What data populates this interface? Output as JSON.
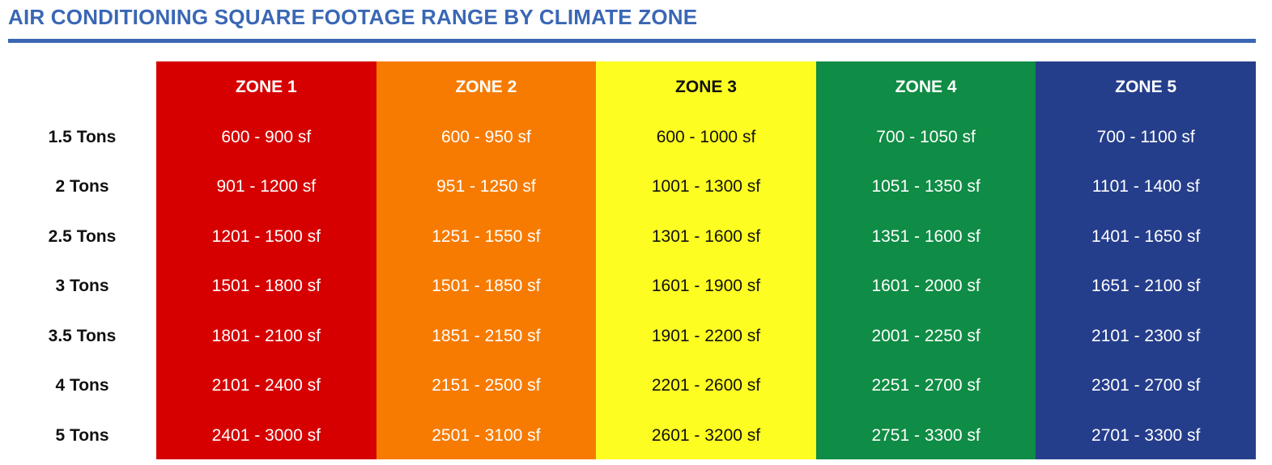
{
  "title": "AIR CONDITIONING SQUARE FOOTAGE RANGE BY CLIMATE ZONE",
  "colors": {
    "title": "#3a67b5",
    "zones": [
      "#d60000",
      "#f77b00",
      "#fdfd21",
      "#0f8c45",
      "#253e8c"
    ],
    "zone_text": [
      "#ffffff",
      "#ffffff",
      "#111111",
      "#ffffff",
      "#ffffff"
    ]
  },
  "chart_data": {
    "type": "table",
    "title": "AIR CONDITIONING SQUARE FOOTAGE RANGE BY CLIMATE ZONE",
    "columns": [
      "ZONE 1",
      "ZONE 2",
      "ZONE 3",
      "ZONE 4",
      "ZONE 5"
    ],
    "rows": [
      "1.5 Tons",
      "2 Tons",
      "2.5 Tons",
      "3 Tons",
      "3.5 Tons",
      "4 Tons",
      "5 Tons"
    ],
    "cells": [
      [
        "600 - 900 sf",
        "600 - 950 sf",
        "600 - 1000 sf",
        "700 - 1050 sf",
        "700 - 1100 sf"
      ],
      [
        "901 - 1200 sf",
        "951 - 1250 sf",
        "1001 - 1300 sf",
        "1051 - 1350 sf",
        "1101 - 1400 sf"
      ],
      [
        "1201 - 1500 sf",
        "1251 - 1550 sf",
        "1301 - 1600 sf",
        "1351 - 1600 sf",
        "1401 - 1650 sf"
      ],
      [
        "1501 - 1800 sf",
        "1501 - 1850 sf",
        "1601 - 1900 sf",
        "1601 - 2000 sf",
        "1651 - 2100 sf"
      ],
      [
        "1801 - 2100 sf",
        "1851 - 2150 sf",
        "1901 - 2200 sf",
        "2001 - 2250 sf",
        "2101 - 2300 sf"
      ],
      [
        "2101 - 2400 sf",
        "2151 - 2500 sf",
        "2201 - 2600 sf",
        "2251 - 2700 sf",
        "2301 - 2700 sf"
      ],
      [
        "2401 - 3000 sf",
        "2501 - 3100 sf",
        "2601 - 3200 sf",
        "2751 - 3300 sf",
        "2701 - 3300 sf"
      ]
    ]
  }
}
